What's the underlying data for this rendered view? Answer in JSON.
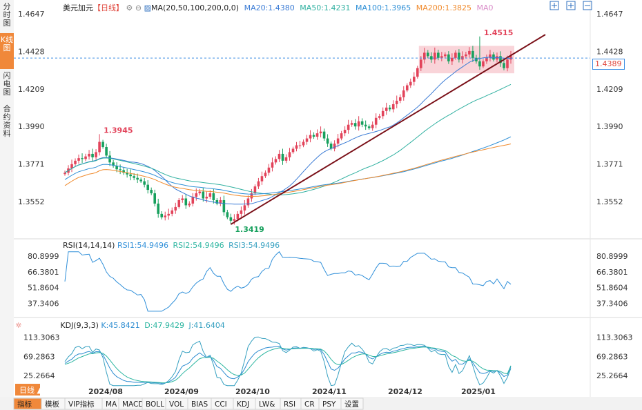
{
  "header": {
    "symbol": "美元加元",
    "period": "【日线】",
    "ma_label": "MA(20,50,100,200,0,0)",
    "ma20": "MA20:1.4380",
    "ma50": "MA50:1.4231",
    "ma100": "MA100:1.3965",
    "ma200": "MA200:1.3825",
    "ma0": "MA0"
  },
  "left_tabs": [
    "分时图",
    "K线图",
    "闪电图",
    "合约资料"
  ],
  "current_price": "1.4389",
  "colors": {
    "up": "#e2435a",
    "down": "#17a05d",
    "ma20": "#3a7bd5",
    "ma50": "#2fb0a0",
    "ma100": "#2e8fd6",
    "ma200": "#f08a2c",
    "trendline": "#7a1018",
    "current_line": "#3c8de3",
    "rsi": "#2f8fd9",
    "kdj_k": "#2a8bd0",
    "kdj_d": "#2bb5a0",
    "kdj_j": "#35a0c0",
    "box": "#f7c5cc"
  },
  "chart_data": {
    "type": "candlestick",
    "instrument": "美元加元",
    "period": "日线",
    "main_panel": {
      "y_ticks": [
        "1.4647",
        "1.4428",
        "1.4209",
        "1.3990",
        "1.3771",
        "1.3552"
      ],
      "ylim": [
        1.3419,
        1.4647
      ],
      "annotations": [
        {
          "label": "1.3945",
          "value": 1.3945,
          "type": "high"
        },
        {
          "label": "1.3419",
          "value": 1.3419,
          "type": "low"
        },
        {
          "label": "1.4515",
          "value": 1.4515,
          "type": "high"
        }
      ],
      "current_price": 1.4389,
      "ohlc_reconstructed": {
        "note": "approximate closes read from the chart, roughly 2024-07 to 2025-01",
        "closes": [
          1.372,
          1.3745,
          1.377,
          1.379,
          1.3805,
          1.38,
          1.3815,
          1.383,
          1.381,
          1.384,
          1.39,
          1.387,
          1.382,
          1.378,
          1.376,
          1.374,
          1.3735,
          1.372,
          1.371,
          1.37,
          1.369,
          1.368,
          1.367,
          1.365,
          1.362,
          1.36,
          1.354,
          1.348,
          1.346,
          1.347,
          1.348,
          1.35,
          1.352,
          1.356,
          1.357,
          1.353,
          1.354,
          1.358,
          1.36,
          1.361,
          1.357,
          1.358,
          1.36,
          1.356,
          1.354,
          1.356,
          1.349,
          1.346,
          1.344,
          1.345,
          1.348,
          1.35,
          1.353,
          1.357,
          1.36,
          1.364,
          1.367,
          1.37,
          1.372,
          1.375,
          1.378,
          1.38,
          1.383,
          1.379,
          1.381,
          1.384,
          1.386,
          1.388,
          1.388,
          1.39,
          1.392,
          1.394,
          1.393,
          1.395,
          1.396,
          1.392,
          1.389,
          1.386,
          1.389,
          1.392,
          1.395,
          1.397,
          1.4,
          1.401,
          1.399,
          1.402,
          1.4,
          1.399,
          1.398,
          1.4,
          1.404,
          1.405,
          1.408,
          1.41,
          1.409,
          1.412,
          1.414,
          1.416,
          1.42,
          1.423,
          1.425,
          1.428,
          1.433,
          1.438,
          1.442,
          1.44,
          1.438,
          1.442,
          1.439,
          1.44,
          1.441,
          1.437,
          1.439,
          1.442,
          1.438,
          1.44,
          1.441,
          1.443,
          1.439,
          1.437,
          1.434,
          1.437,
          1.439,
          1.441,
          1.438,
          1.44,
          1.436,
          1.433,
          1.438,
          1.44
        ]
      },
      "moving_averages": [
        {
          "name": "MA20",
          "last": 1.438
        },
        {
          "name": "MA50",
          "last": 1.4231
        },
        {
          "name": "MA100",
          "last": 1.3965
        },
        {
          "name": "MA200",
          "last": 1.3825
        }
      ],
      "trendline": {
        "from": 1.3419,
        "to_label": "upward support line"
      },
      "box": {
        "low": 1.43,
        "high": 1.446
      }
    },
    "x_ticks": [
      "2024/08",
      "2024/09",
      "2024/10",
      "2024/11",
      "2024/12",
      "2025/01"
    ],
    "rsi_panel": {
      "label": "RSI(14,14,14)",
      "rsi1": "RSI1:54.9496",
      "rsi2": "RSI2:54.9496",
      "rsi3": "RSI3:54.9496",
      "y_ticks": [
        "80.8999",
        "66.3801",
        "51.8604",
        "37.3406"
      ],
      "ylim": [
        28,
        88
      ]
    },
    "kdj_panel": {
      "label": "KDJ(9,3,3)",
      "k": "K:45.8421",
      "d": "D:47.9429",
      "j": "J:41.6404",
      "y_ticks": [
        "113.3063",
        "69.2863",
        "25.2664"
      ],
      "ylim": [
        0,
        130
      ]
    }
  },
  "bottom_bar": {
    "period_selector": "日线",
    "tabs": [
      "指标",
      "模板",
      "VIP指标",
      "MA",
      "MACD",
      "BOLL",
      "VOL",
      "BIAS",
      "CCI",
      "KDJ",
      "LW&",
      "RSI",
      "CR",
      "PSY",
      "设置"
    ]
  }
}
